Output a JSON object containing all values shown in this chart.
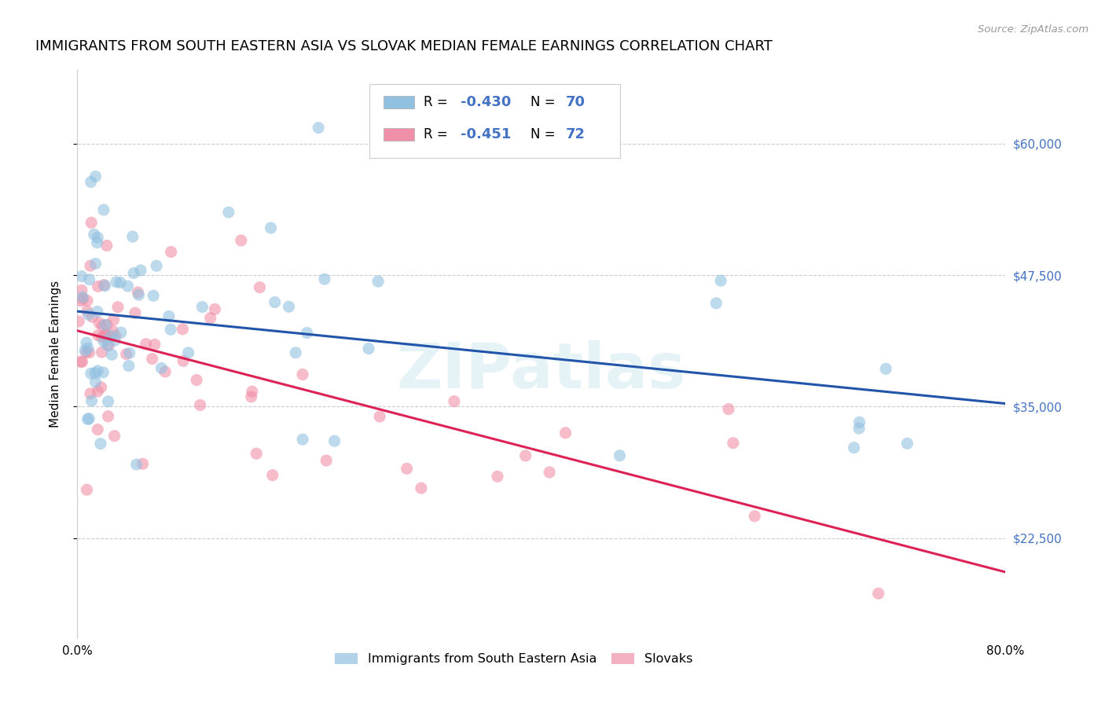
{
  "title": "IMMIGRANTS FROM SOUTH EASTERN ASIA VS SLOVAK MEDIAN FEMALE EARNINGS CORRELATION CHART",
  "source": "Source: ZipAtlas.com",
  "ylabel": "Median Female Earnings",
  "xlim": [
    0.0,
    0.8
  ],
  "ylim": [
    13000,
    67000
  ],
  "yticks": [
    22500,
    35000,
    47500,
    60000
  ],
  "ytick_labels": [
    "$22,500",
    "$35,000",
    "$47,500",
    "$60,000"
  ],
  "xticks": [
    0.0,
    0.1,
    0.2,
    0.3,
    0.4,
    0.5,
    0.6,
    0.7,
    0.8
  ],
  "series1_color": "#92c0e0",
  "series2_color": "#f090a8",
  "line1_color": "#2255aa",
  "line2_color": "#dd2255",
  "watermark": "ZIPatlas",
  "title_fontsize": 13,
  "axis_label_fontsize": 11,
  "tick_fontsize": 11,
  "right_tick_color": "#4472c4",
  "series1_N": 70,
  "series2_N": 72,
  "series1_seed": 42,
  "series2_seed": 17,
  "blue_intercept": 44000,
  "blue_slope": -17500,
  "pink_intercept": 42500,
  "pink_slope": -34000
}
